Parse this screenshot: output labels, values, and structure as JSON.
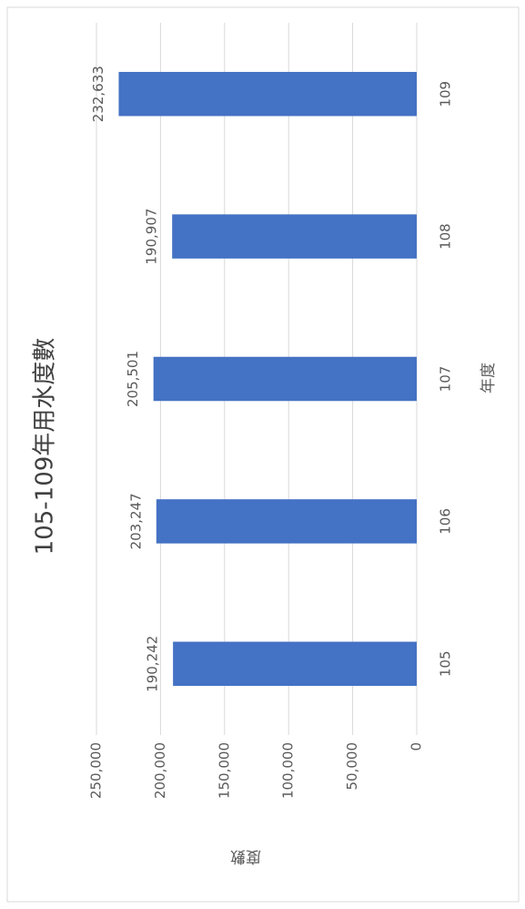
{
  "chart_data": {
    "type": "bar",
    "title": "105-109年用水度數",
    "x_label": "年度",
    "y_label": "度數",
    "categories": [
      "105",
      "106",
      "107",
      "108",
      "109"
    ],
    "values": [
      190242,
      203247,
      205501,
      190907,
      232633
    ],
    "value_labels": [
      "190,242",
      "203,247",
      "205,501",
      "190,907",
      "232,633"
    ],
    "color": "#4472c4",
    "ylim": [
      0,
      250000
    ],
    "yticks": [
      0,
      {
        "value": 50000,
        "label": "50,000"
      },
      {
        "value": 100000,
        "label": "100,000"
      },
      {
        "value": 150000,
        "label": "150,000"
      },
      {
        "value": 200000,
        "label": "200,000"
      },
      {
        "value": 250000,
        "label": "250,000"
      }
    ],
    "grid": true
  }
}
